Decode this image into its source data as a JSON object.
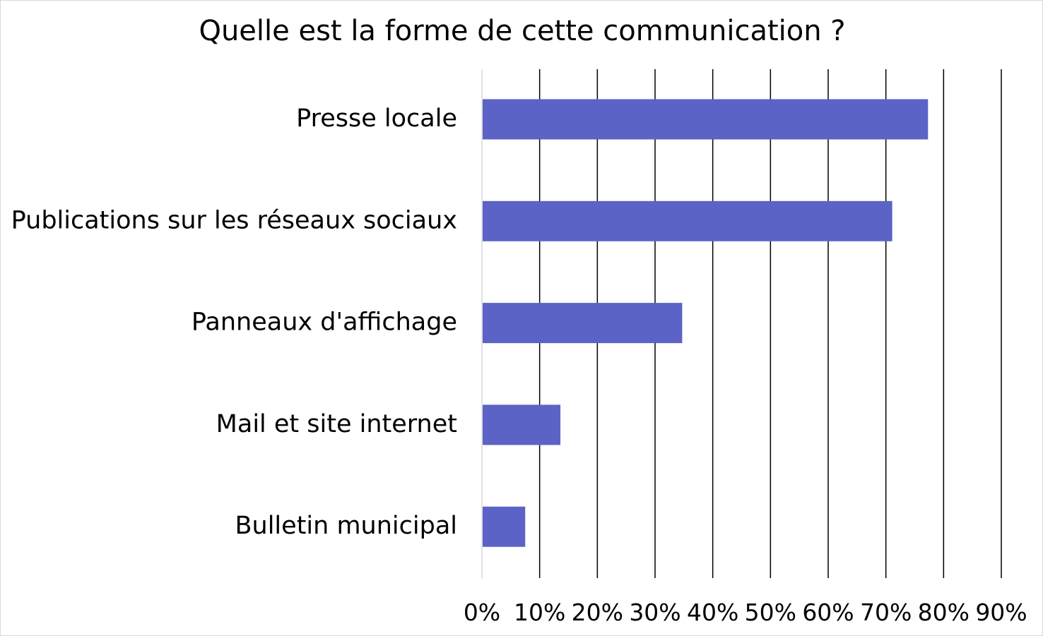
{
  "chart_data": {
    "type": "bar",
    "orientation": "horizontal",
    "title": "Quelle est la forme de cette communication ?",
    "categories": [
      "Presse locale",
      "Publications sur les réseaux sociaux",
      "Panneaux d'affichage",
      "Mail et site internet",
      "Bulletin municipal"
    ],
    "values": [
      77.3,
      71.1,
      34.7,
      13.6,
      7.5
    ],
    "xlim": [
      0,
      90
    ],
    "xticks": [
      0,
      10,
      20,
      30,
      40,
      50,
      60,
      70,
      80,
      90
    ],
    "xtick_labels": [
      "0%",
      "10%",
      "20%",
      "30%",
      "40%",
      "50%",
      "60%",
      "70%",
      "80%",
      "90%"
    ],
    "grid": "vertical",
    "legend": "none",
    "bar_color": "#5b63c6",
    "grid_color": "#000000",
    "axis_color": "#d9d9d9"
  }
}
